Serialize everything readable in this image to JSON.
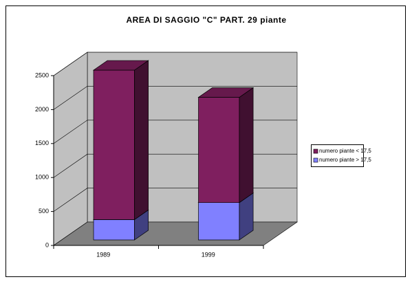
{
  "chart_data": {
    "type": "bar3d_stacked",
    "title": "AREA DI SAGGIO \"C\" PART. 29 piante",
    "categories": [
      "1989",
      "1999"
    ],
    "series": [
      {
        "name": "numero piante > 17,5",
        "color": "#8080ff",
        "values": [
          300,
          550
        ]
      },
      {
        "name": "numero piante < 17,5",
        "color": "#7f1f5f",
        "values": [
          2200,
          1550
        ]
      }
    ],
    "ylim": [
      0,
      2500
    ],
    "yticks": [
      0,
      500,
      1000,
      1500,
      2000,
      2500
    ],
    "grid": true,
    "legend": "right"
  }
}
